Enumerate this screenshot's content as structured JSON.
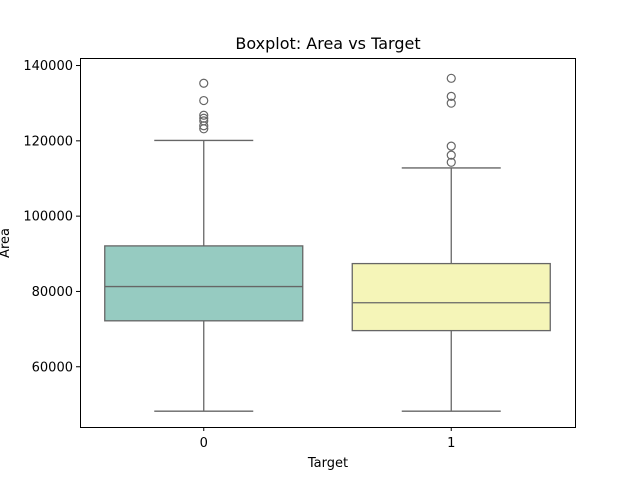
{
  "chart_data": {
    "type": "boxplot",
    "title": "Boxplot: Area vs Target",
    "xlabel": "Target",
    "ylabel": "Area",
    "categories": [
      "0",
      "1"
    ],
    "y_ticks": [
      "60000",
      "80000",
      "100000",
      "120000",
      "140000"
    ],
    "ylim": [
      44000,
      142000
    ],
    "grid": false,
    "boxes": [
      {
        "category": "0",
        "color": "#96cbc1",
        "whisker_low": 48200,
        "q1": 72200,
        "median": 81300,
        "q3": 92100,
        "whisker_high": 120100,
        "outliers": [
          123200,
          124000,
          125300,
          126000,
          126800,
          130700,
          135300
        ]
      },
      {
        "category": "1",
        "color": "#f5f5b8",
        "whisker_low": 48200,
        "q1": 69600,
        "median": 77000,
        "q3": 87400,
        "whisker_high": 112800,
        "outliers": [
          114300,
          116200,
          118600,
          130000,
          131800,
          136600
        ]
      }
    ]
  }
}
